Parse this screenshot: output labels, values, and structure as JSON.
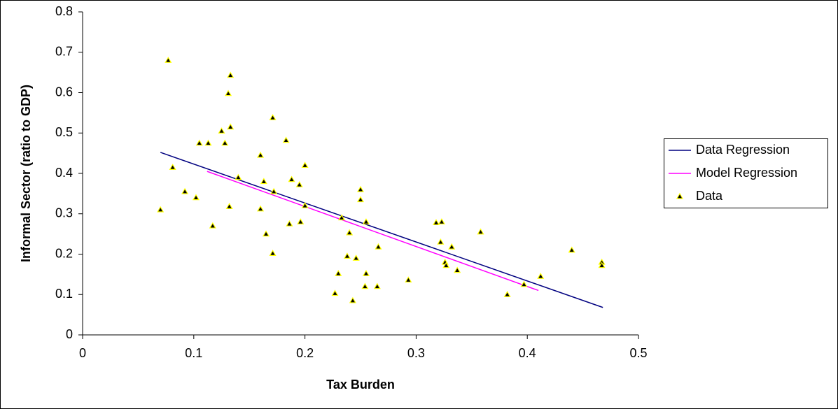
{
  "chart_data": {
    "type": "scatter",
    "x_label": "Tax Burden",
    "y_label": "Informal Sector (ratio to GDP)",
    "xlim": [
      0,
      0.5
    ],
    "xticks": [
      0,
      0.1,
      0.2,
      0.3,
      0.4,
      0.5
    ],
    "ylim": [
      0,
      0.8
    ],
    "yticks": [
      0,
      0.1,
      0.2,
      0.3,
      0.4,
      0.5,
      0.6,
      0.7,
      0.8
    ],
    "grid": false,
    "legend": "right",
    "series": [
      {
        "name": "Data Regression",
        "color": "#000080",
        "style": "line",
        "x": [
          0.07,
          0.468
        ],
        "values": [
          0.452,
          0.068
        ]
      },
      {
        "name": "Model Regression",
        "color": "#ff00ff",
        "style": "line",
        "x": [
          0.112,
          0.41
        ],
        "values": [
          0.405,
          0.11
        ]
      },
      {
        "name": "Data",
        "color": "#000000",
        "style": "marker",
        "x": [
          0.07,
          0.077,
          0.081,
          0.092,
          0.102,
          0.105,
          0.113,
          0.117,
          0.125,
          0.128,
          0.131,
          0.133,
          0.133,
          0.132,
          0.14,
          0.16,
          0.16,
          0.163,
          0.165,
          0.171,
          0.171,
          0.172,
          0.183,
          0.186,
          0.188,
          0.195,
          0.196,
          0.2,
          0.2,
          0.227,
          0.23,
          0.233,
          0.238,
          0.24,
          0.243,
          0.246,
          0.25,
          0.25,
          0.254,
          0.255,
          0.255,
          0.265,
          0.266,
          0.293,
          0.318,
          0.322,
          0.323,
          0.326,
          0.327,
          0.332,
          0.337,
          0.358,
          0.382,
          0.397,
          0.412,
          0.44,
          0.467,
          0.467
        ],
        "values": [
          0.31,
          0.68,
          0.415,
          0.355,
          0.34,
          0.475,
          0.475,
          0.27,
          0.505,
          0.475,
          0.598,
          0.643,
          0.515,
          0.318,
          0.39,
          0.445,
          0.312,
          0.38,
          0.25,
          0.538,
          0.202,
          0.355,
          0.482,
          0.275,
          0.385,
          0.372,
          0.28,
          0.32,
          0.42,
          0.103,
          0.152,
          0.29,
          0.195,
          0.253,
          0.085,
          0.19,
          0.36,
          0.335,
          0.12,
          0.152,
          0.28,
          0.12,
          0.218,
          0.136,
          0.278,
          0.23,
          0.28,
          0.18,
          0.172,
          0.218,
          0.16,
          0.255,
          0.1,
          0.125,
          0.145,
          0.21,
          0.18,
          0.172
        ]
      }
    ]
  }
}
